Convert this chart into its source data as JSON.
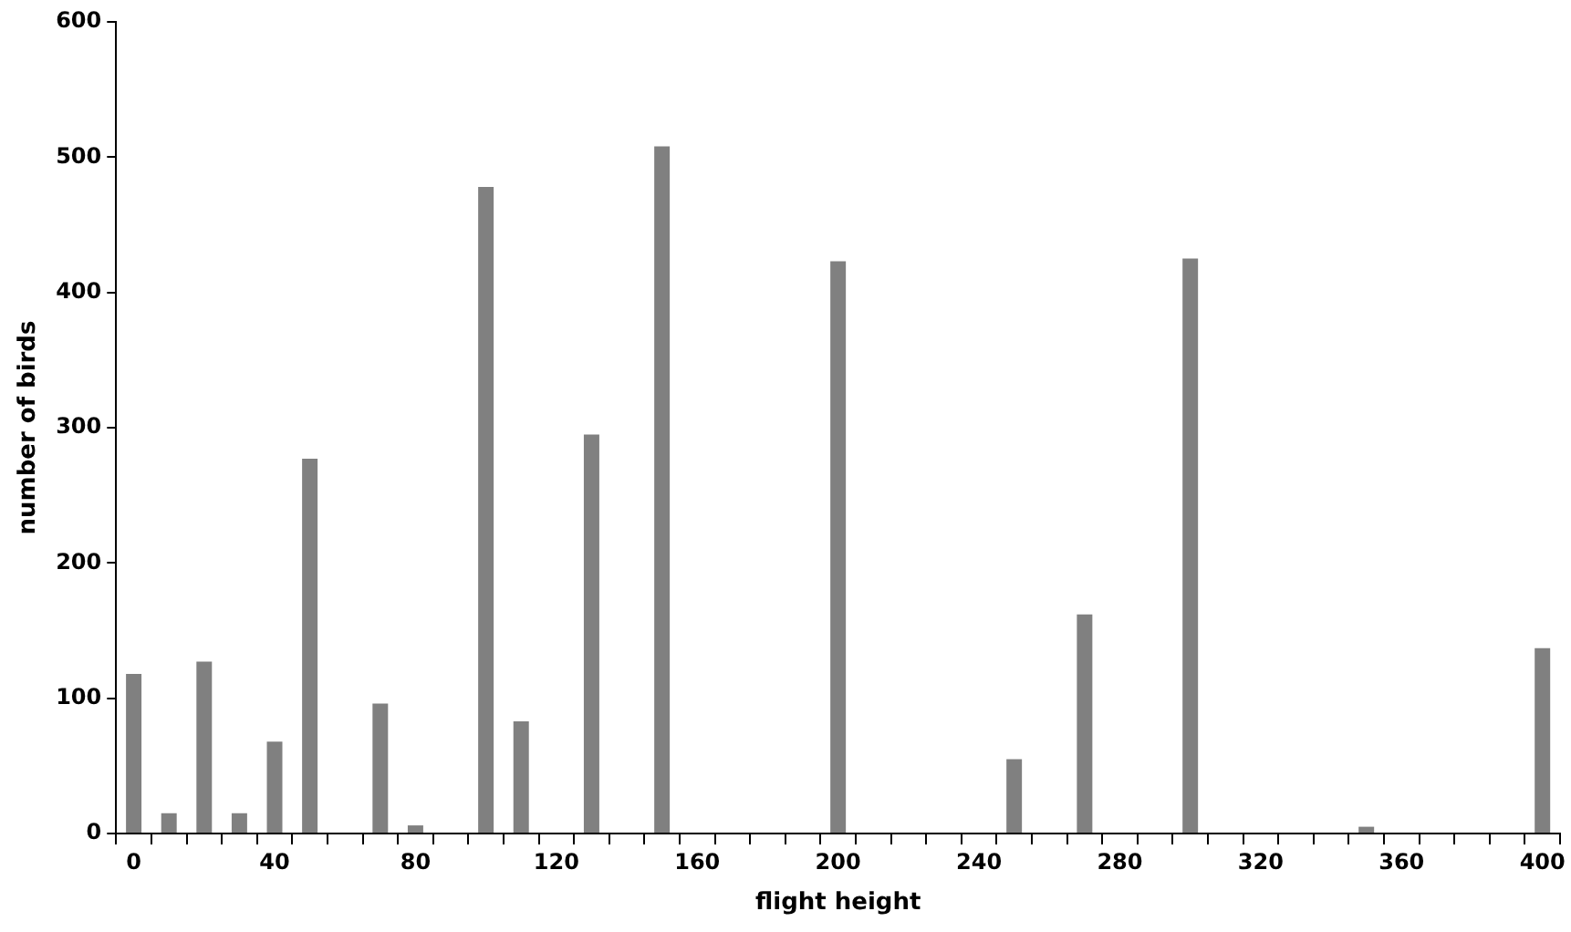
{
  "chart_data": {
    "type": "bar",
    "xlabel": "flight height",
    "ylabel": "number of birds",
    "categories": [
      "0",
      null,
      null,
      null,
      "40",
      null,
      null,
      null,
      "80",
      null,
      null,
      null,
      "120",
      null,
      null,
      null,
      "160",
      null,
      null,
      null,
      "200",
      null,
      null,
      null,
      "240",
      null,
      null,
      null,
      "280",
      null,
      null,
      null,
      "320",
      null,
      null,
      null,
      "360",
      null,
      null,
      null,
      "400"
    ],
    "values": [
      118,
      15,
      127,
      15,
      68,
      277,
      null,
      96,
      6,
      null,
      478,
      83,
      null,
      295,
      null,
      508,
      null,
      null,
      null,
      null,
      423,
      null,
      null,
      null,
      null,
      55,
      null,
      162,
      null,
      null,
      425,
      null,
      null,
      null,
      null,
      5,
      null,
      null,
      null,
      null,
      137
    ],
    "color": "#808080",
    "ylim": [
      0,
      600
    ],
    "yticks": [
      0,
      100,
      200,
      300,
      400,
      500,
      600
    ],
    "grid": false,
    "legend": false
  }
}
